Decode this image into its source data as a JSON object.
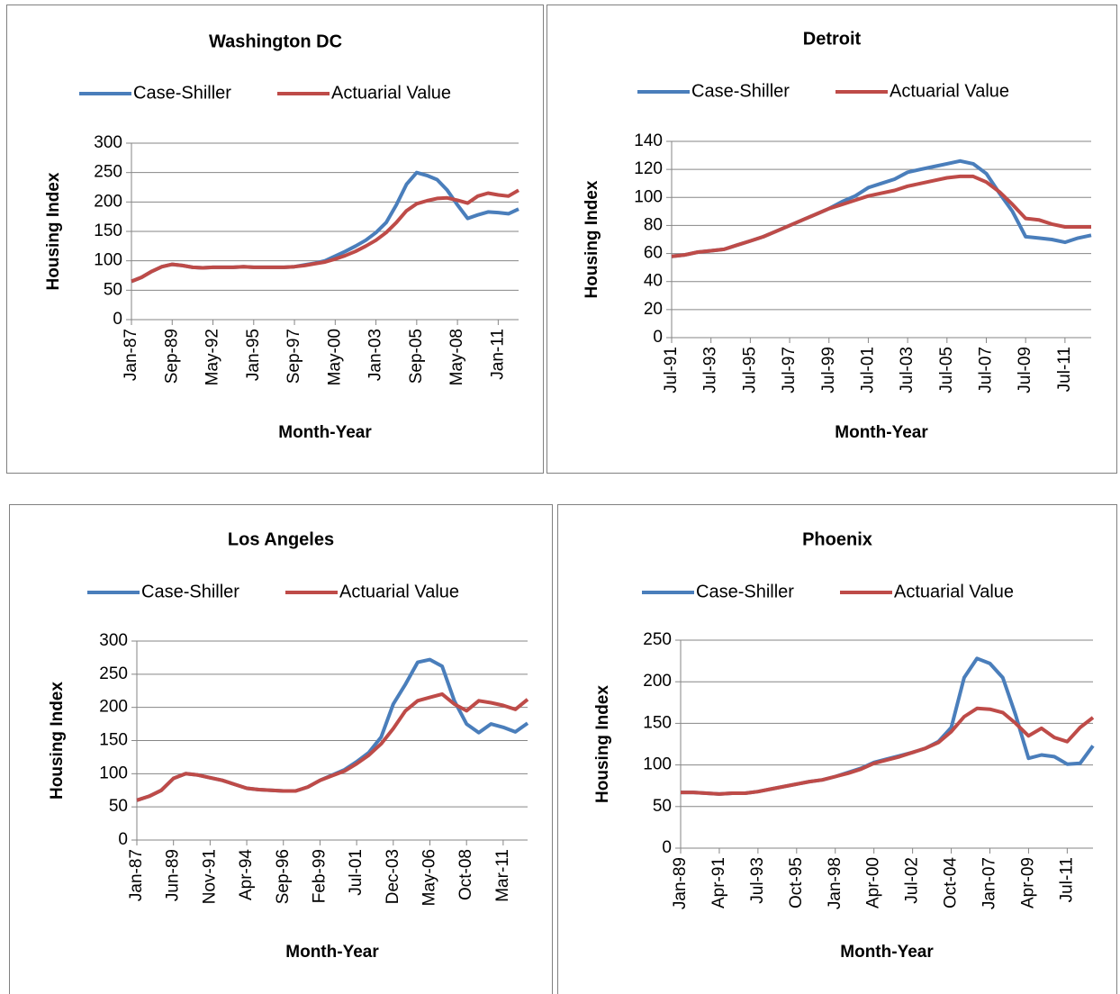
{
  "chart_data": [
    {
      "type": "line",
      "title": "Washington DC",
      "x_label": "Month-Year",
      "y_label": "Housing Index",
      "categories": [
        "Jan-87",
        null,
        null,
        null,
        "Sep-89",
        null,
        null,
        null,
        "May-92",
        null,
        null,
        null,
        "Jan-95",
        null,
        null,
        null,
        "Sep-97",
        null,
        null,
        null,
        "May-00",
        null,
        null,
        null,
        "Jan-03",
        null,
        null,
        null,
        "Sep-05",
        null,
        null,
        null,
        "May-08",
        null,
        null,
        null,
        "Jan-11",
        null,
        null
      ],
      "series": [
        {
          "name": "Case-Shiller",
          "color": "#4a7ebb",
          "values": [
            65,
            72,
            82,
            90,
            94,
            92,
            89,
            88,
            89,
            89,
            89,
            90,
            89,
            89,
            89,
            89,
            90,
            93,
            96,
            100,
            108,
            116,
            125,
            135,
            148,
            165,
            195,
            230,
            250,
            245,
            238,
            220,
            195,
            172,
            178,
            183,
            182,
            180,
            188
          ]
        },
        {
          "name": "Actuarial Value",
          "color": "#be4b48",
          "values": [
            65,
            72,
            82,
            90,
            94,
            92,
            89,
            88,
            89,
            89,
            89,
            90,
            89,
            89,
            89,
            89,
            90,
            92,
            95,
            98,
            103,
            109,
            116,
            125,
            135,
            148,
            165,
            185,
            197,
            202,
            206,
            207,
            203,
            198,
            210,
            215,
            212,
            210,
            220
          ]
        }
      ],
      "ylim": [
        0,
        300
      ],
      "yticks": [
        0,
        50,
        100,
        150,
        200,
        250,
        300
      ],
      "grid": true,
      "legend": "top"
    },
    {
      "type": "line",
      "title": "Detroit",
      "x_label": "Month-Year",
      "y_label": "Housing Index",
      "categories": [
        "Jul-91",
        null,
        null,
        "Jul-93",
        null,
        null,
        "Jul-95",
        null,
        null,
        "Jul-97",
        null,
        null,
        "Jul-99",
        null,
        null,
        "Jul-01",
        null,
        null,
        "Jul-03",
        null,
        null,
        "Jul-05",
        null,
        null,
        "Jul-07",
        null,
        null,
        "Jul-09",
        null,
        null,
        "Jul-11",
        null,
        null
      ],
      "series": [
        {
          "name": "Case-Shiller",
          "color": "#4a7ebb",
          "values": [
            58,
            59,
            61,
            62,
            63,
            66,
            69,
            72,
            76,
            80,
            84,
            88,
            92,
            97,
            101,
            107,
            110,
            113,
            118,
            120,
            122,
            124,
            126,
            124,
            117,
            103,
            90,
            72,
            71,
            70,
            68,
            71,
            73
          ]
        },
        {
          "name": "Actuarial Value",
          "color": "#be4b48",
          "values": [
            58,
            59,
            61,
            62,
            63,
            66,
            69,
            72,
            76,
            80,
            84,
            88,
            92,
            95,
            98,
            101,
            103,
            105,
            108,
            110,
            112,
            114,
            115,
            115,
            111,
            104,
            95,
            85,
            84,
            81,
            79,
            79,
            79
          ]
        }
      ],
      "ylim": [
        0,
        140
      ],
      "yticks": [
        0,
        20,
        40,
        60,
        80,
        100,
        120,
        140
      ],
      "grid": true,
      "legend": "top"
    },
    {
      "type": "line",
      "title": "Los Angeles",
      "x_label": "Month-Year",
      "y_label": "Housing Index",
      "categories": [
        "Jan-87",
        null,
        null,
        "Jun-89",
        null,
        null,
        "Nov-91",
        null,
        null,
        "Apr-94",
        null,
        null,
        "Sep-96",
        null,
        null,
        "Feb-99",
        null,
        null,
        "Jul-01",
        null,
        null,
        "Dec-03",
        null,
        null,
        "May-06",
        null,
        null,
        "Oct-08",
        null,
        null,
        "Mar-11",
        null,
        null
      ],
      "series": [
        {
          "name": "Case-Shiller",
          "color": "#4a7ebb",
          "values": [
            60,
            66,
            75,
            93,
            100,
            98,
            94,
            90,
            84,
            78,
            76,
            75,
            74,
            74,
            80,
            90,
            98,
            106,
            118,
            132,
            155,
            205,
            235,
            268,
            272,
            262,
            210,
            175,
            162,
            175,
            170,
            163,
            176
          ]
        },
        {
          "name": "Actuarial Value",
          "color": "#be4b48",
          "values": [
            60,
            66,
            75,
            93,
            100,
            98,
            94,
            90,
            84,
            78,
            76,
            75,
            74,
            74,
            80,
            90,
            97,
            104,
            115,
            128,
            145,
            168,
            195,
            210,
            215,
            220,
            205,
            195,
            210,
            207,
            203,
            197,
            212
          ]
        }
      ],
      "ylim": [
        0,
        300
      ],
      "yticks": [
        0,
        50,
        100,
        150,
        200,
        250,
        300
      ],
      "grid": true,
      "legend": "top"
    },
    {
      "type": "line",
      "title": "Phoenix",
      "x_label": "Month-Year",
      "y_label": "Housing Index",
      "categories": [
        "Jan-89",
        null,
        null,
        "Apr-91",
        null,
        null,
        "Jul-93",
        null,
        null,
        "Oct-95",
        null,
        null,
        "Jan-98",
        null,
        null,
        "Apr-00",
        null,
        null,
        "Jul-02",
        null,
        null,
        "Oct-04",
        null,
        null,
        "Jan-07",
        null,
        null,
        "Apr-09",
        null,
        null,
        "Jul-11",
        null,
        null
      ],
      "series": [
        {
          "name": "Case-Shiller",
          "color": "#4a7ebb",
          "values": [
            67,
            67,
            66,
            65,
            66,
            66,
            68,
            71,
            74,
            77,
            80,
            82,
            86,
            91,
            96,
            103,
            107,
            111,
            115,
            120,
            128,
            145,
            205,
            228,
            222,
            205,
            160,
            108,
            112,
            110,
            101,
            102,
            123
          ]
        },
        {
          "name": "Actuarial Value",
          "color": "#be4b48",
          "values": [
            67,
            67,
            66,
            65,
            66,
            66,
            68,
            71,
            74,
            77,
            80,
            82,
            86,
            90,
            95,
            102,
            106,
            110,
            115,
            120,
            127,
            140,
            158,
            168,
            167,
            163,
            150,
            135,
            144,
            133,
            128,
            145,
            157
          ]
        }
      ],
      "ylim": [
        0,
        250
      ],
      "yticks": [
        0,
        50,
        100,
        150,
        200,
        250
      ],
      "grid": true,
      "legend": "top"
    }
  ]
}
